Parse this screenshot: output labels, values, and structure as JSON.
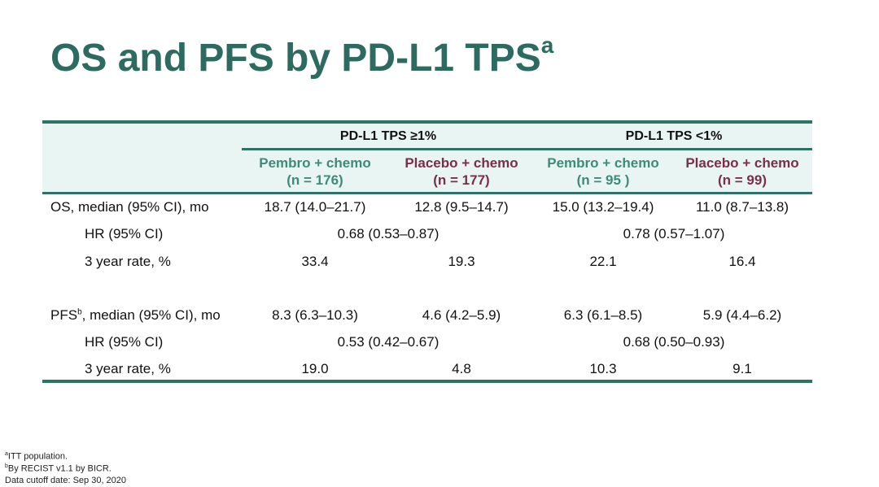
{
  "title": {
    "text": "OS and PFS by PD-L1 TPS",
    "sup": "a"
  },
  "table": {
    "groups": [
      "PD-L1 TPS ≥1%",
      "PD-L1 TPS <1%"
    ],
    "columns": [
      {
        "name": "Pembro + chemo",
        "n": "(n = 176)"
      },
      {
        "name": "Placebo + chemo",
        "n": "(n = 177)"
      },
      {
        "name": "Pembro + chemo",
        "n": "(n = 95 )"
      },
      {
        "name": "Placebo + chemo",
        "n": "(n = 99)"
      }
    ],
    "rows": [
      {
        "label": "OS, median (95% CI), mo",
        "cells": [
          "18.7 (14.0–21.7)",
          "12.8 (9.5–14.7)",
          "15.0 (13.2–19.4)",
          "11.0 (8.7–13.8)"
        ]
      },
      {
        "label": "HR (95% CI)",
        "cells": [
          "0.68 (0.53–0.87)",
          "0.78 (0.57–1.07)"
        ]
      },
      {
        "label": "3 year rate, %",
        "cells": [
          "33.4",
          "19.3",
          "22.1",
          "16.4"
        ]
      },
      {
        "label": "PFS",
        "label_sup": "b",
        "label_rest": ", median (95% CI), mo",
        "cells": [
          "8.3 (6.3–10.3)",
          "4.6 (4.2–5.9)",
          "6.3 (6.1–8.5)",
          "5.9 (4.4–6.2)"
        ]
      },
      {
        "label": "HR (95% CI)",
        "cells": [
          "0.53 (0.42–0.67)",
          "0.68 (0.50–0.93)"
        ]
      },
      {
        "label": "3 year rate, %",
        "cells": [
          "19.0",
          "4.8",
          "10.3",
          "9.1"
        ]
      }
    ]
  },
  "footnotes": [
    {
      "sup": "a",
      "text": "ITT population."
    },
    {
      "sup": "b",
      "text": "By RECIST v1.1 by BICR."
    },
    {
      "text": "Data cutoff date: Sep 30, 2020"
    }
  ]
}
